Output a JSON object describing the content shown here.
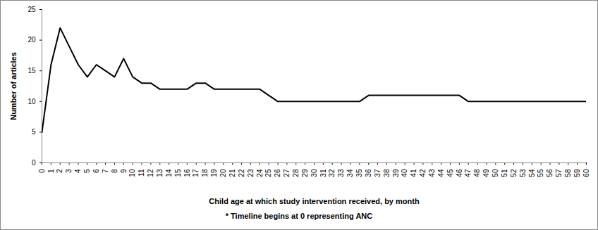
{
  "chart_data": {
    "type": "line",
    "x_label": "Child age at which study intervention received, by month",
    "y_label": "Number of articles",
    "caption": "* Timeline begins at 0 representing ANC",
    "x": [
      0,
      1,
      2,
      3,
      4,
      5,
      6,
      7,
      8,
      9,
      10,
      11,
      12,
      13,
      14,
      15,
      16,
      17,
      18,
      19,
      20,
      21,
      22,
      23,
      24,
      25,
      26,
      27,
      28,
      29,
      30,
      31,
      32,
      33,
      34,
      35,
      36,
      37,
      38,
      39,
      40,
      41,
      42,
      43,
      44,
      45,
      46,
      47,
      48,
      49,
      50,
      51,
      52,
      53,
      54,
      55,
      56,
      57,
      58,
      59,
      60
    ],
    "values": [
      5,
      16,
      22,
      19,
      16,
      14,
      16,
      15,
      14,
      17,
      14,
      13,
      13,
      12,
      12,
      12,
      12,
      13,
      13,
      12,
      12,
      12,
      12,
      12,
      12,
      11,
      10,
      10,
      10,
      10,
      10,
      10,
      10,
      10,
      10,
      10,
      11,
      11,
      11,
      11,
      11,
      11,
      11,
      11,
      11,
      11,
      11,
      10,
      10,
      10,
      10,
      10,
      10,
      10,
      10,
      10,
      10,
      10,
      10,
      10,
      10
    ],
    "color": "#000000",
    "xlim": [
      0,
      60
    ],
    "xticks": [
      0,
      1,
      2,
      3,
      4,
      5,
      6,
      7,
      8,
      9,
      10,
      11,
      12,
      13,
      14,
      15,
      16,
      17,
      18,
      19,
      20,
      21,
      22,
      23,
      24,
      25,
      26,
      27,
      28,
      29,
      30,
      31,
      32,
      33,
      34,
      35,
      36,
      37,
      38,
      39,
      40,
      41,
      42,
      43,
      44,
      45,
      46,
      47,
      48,
      49,
      50,
      51,
      52,
      53,
      54,
      55,
      56,
      57,
      58,
      59,
      60
    ],
    "ylim": [
      0,
      25
    ],
    "yticks": [
      0,
      5,
      10,
      15,
      20,
      25
    ],
    "grid": false
  }
}
